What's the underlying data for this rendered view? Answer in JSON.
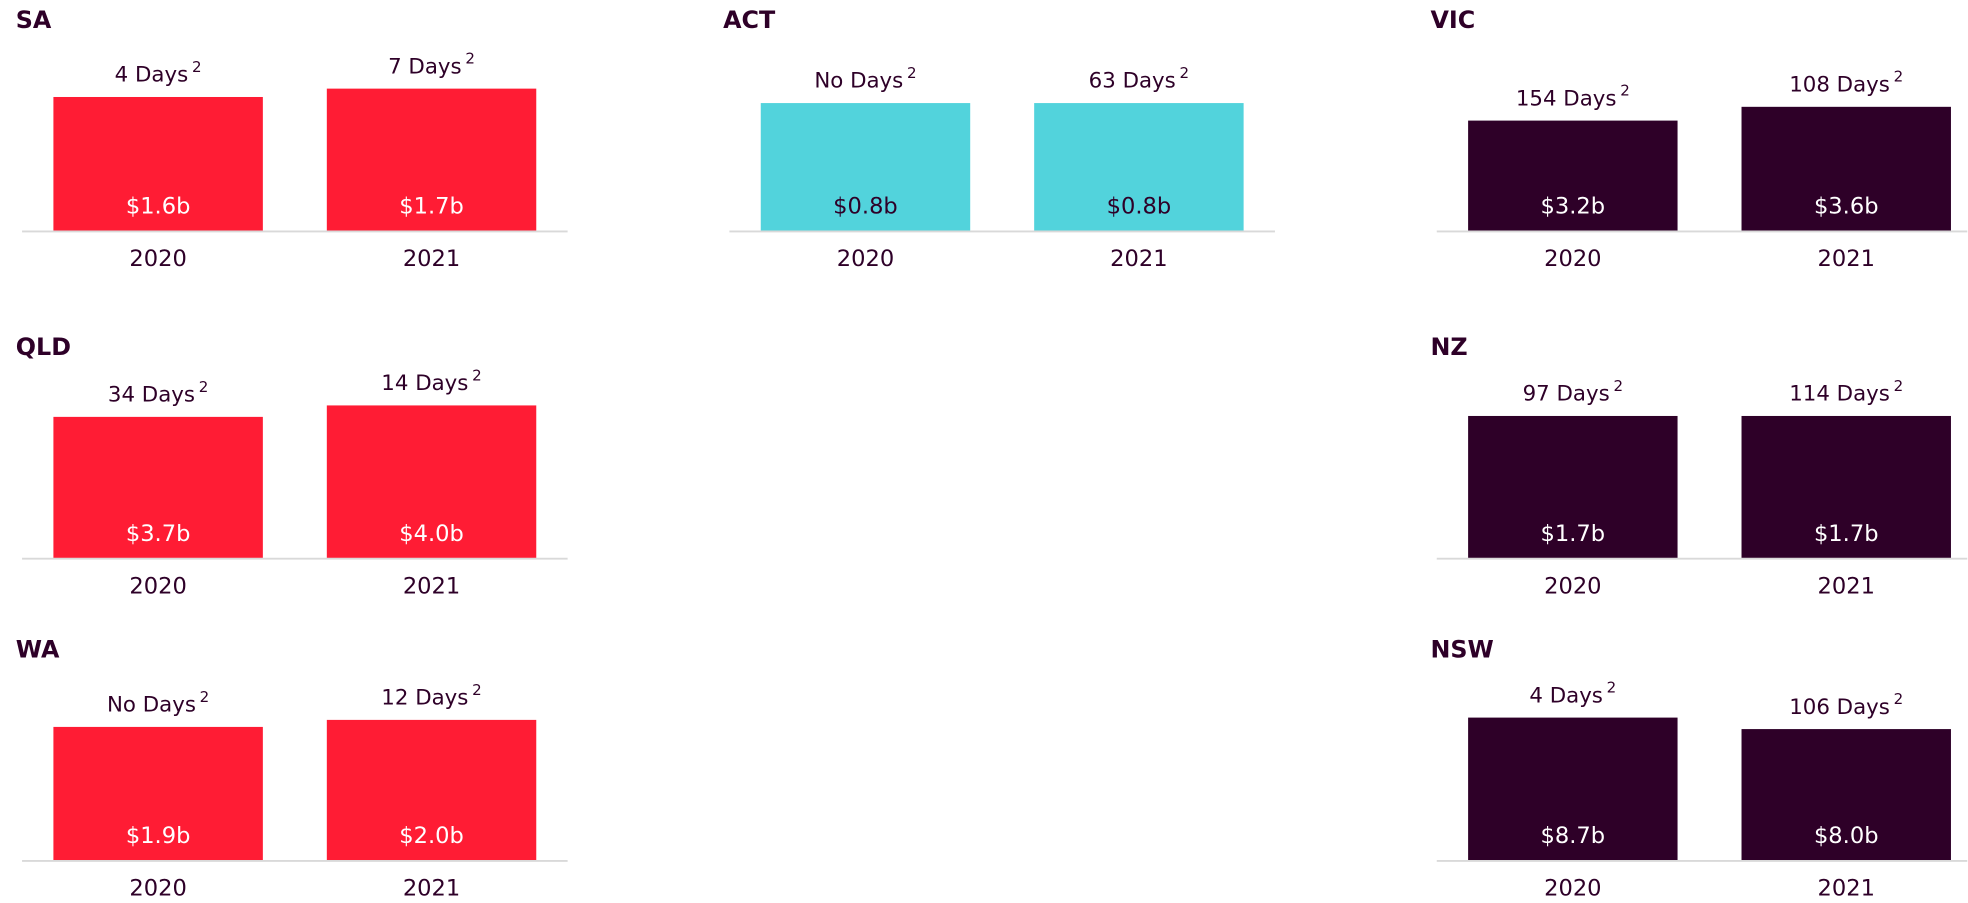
{
  "chart_data": [
    {
      "type": "bar",
      "title": "SA",
      "categories": [
        "2020",
        "2021"
      ],
      "values": [
        1.6,
        1.7
      ],
      "value_labels": [
        "$1.6b",
        "$1.7b"
      ],
      "day_labels": [
        "4 Days",
        "7 Days"
      ],
      "footnote": "2",
      "color": "#ff1c34",
      "label_color": "#ffffff",
      "ylim": [
        0,
        2.1
      ]
    },
    {
      "type": "bar",
      "title": "ACT",
      "categories": [
        "2020",
        "2021"
      ],
      "values": [
        0.8,
        0.8
      ],
      "value_labels": [
        "$0.8b",
        "$0.8b"
      ],
      "day_labels": [
        "No Days",
        "63 Days"
      ],
      "footnote": "2",
      "color": "#52d3dc",
      "label_color": "#2e0028",
      "ylim": [
        0,
        1.1
      ]
    },
    {
      "type": "bar",
      "title": "VIC",
      "categories": [
        "2020",
        "2021"
      ],
      "values": [
        3.2,
        3.6
      ],
      "value_labels": [
        "$3.2b",
        "$3.6b"
      ],
      "day_labels": [
        "154 Days",
        "108 Days"
      ],
      "footnote": "2",
      "color": "#2e0028",
      "label_color": "#ffffff",
      "ylim": [
        0,
        5.1
      ]
    },
    {
      "type": "bar",
      "title": "QLD",
      "categories": [
        "2020",
        "2021"
      ],
      "values": [
        3.7,
        4.0
      ],
      "value_labels": [
        "$3.7b",
        "$4.0b"
      ],
      "day_labels": [
        "34 Days",
        "14 Days"
      ],
      "footnote": "2",
      "color": "#ff1c34",
      "label_color": "#ffffff",
      "ylim": [
        0,
        4.6
      ]
    },
    {
      "type": "bar",
      "title": "NZ",
      "categories": [
        "2020",
        "2021"
      ],
      "values": [
        1.7,
        1.7
      ],
      "value_labels": [
        "$1.7b",
        "$1.7b"
      ],
      "day_labels": [
        "97 Days",
        "114 Days"
      ],
      "footnote": "2",
      "color": "#2e0028",
      "label_color": "#ffffff",
      "ylim": [
        0,
        2.1
      ]
    },
    {
      "type": "bar",
      "title": "WA",
      "categories": [
        "2020",
        "2021"
      ],
      "values": [
        1.9,
        2.0
      ],
      "value_labels": [
        "$1.9b",
        "$2.0b"
      ],
      "day_labels": [
        "No Days",
        "12 Days"
      ],
      "footnote": "2",
      "color": "#ff1c34",
      "label_color": "#ffffff",
      "ylim": [
        0,
        2.5
      ]
    },
    {
      "type": "bar",
      "title": "NSW",
      "categories": [
        "2020",
        "2021"
      ],
      "values": [
        8.7,
        8.0
      ],
      "value_labels": [
        "$8.7b",
        "$8.0b"
      ],
      "day_labels": [
        "4 Days",
        "106 Days"
      ],
      "footnote": "2",
      "color": "#2e0028",
      "label_color": "#ffffff",
      "ylim": [
        0,
        10.7
      ]
    }
  ]
}
